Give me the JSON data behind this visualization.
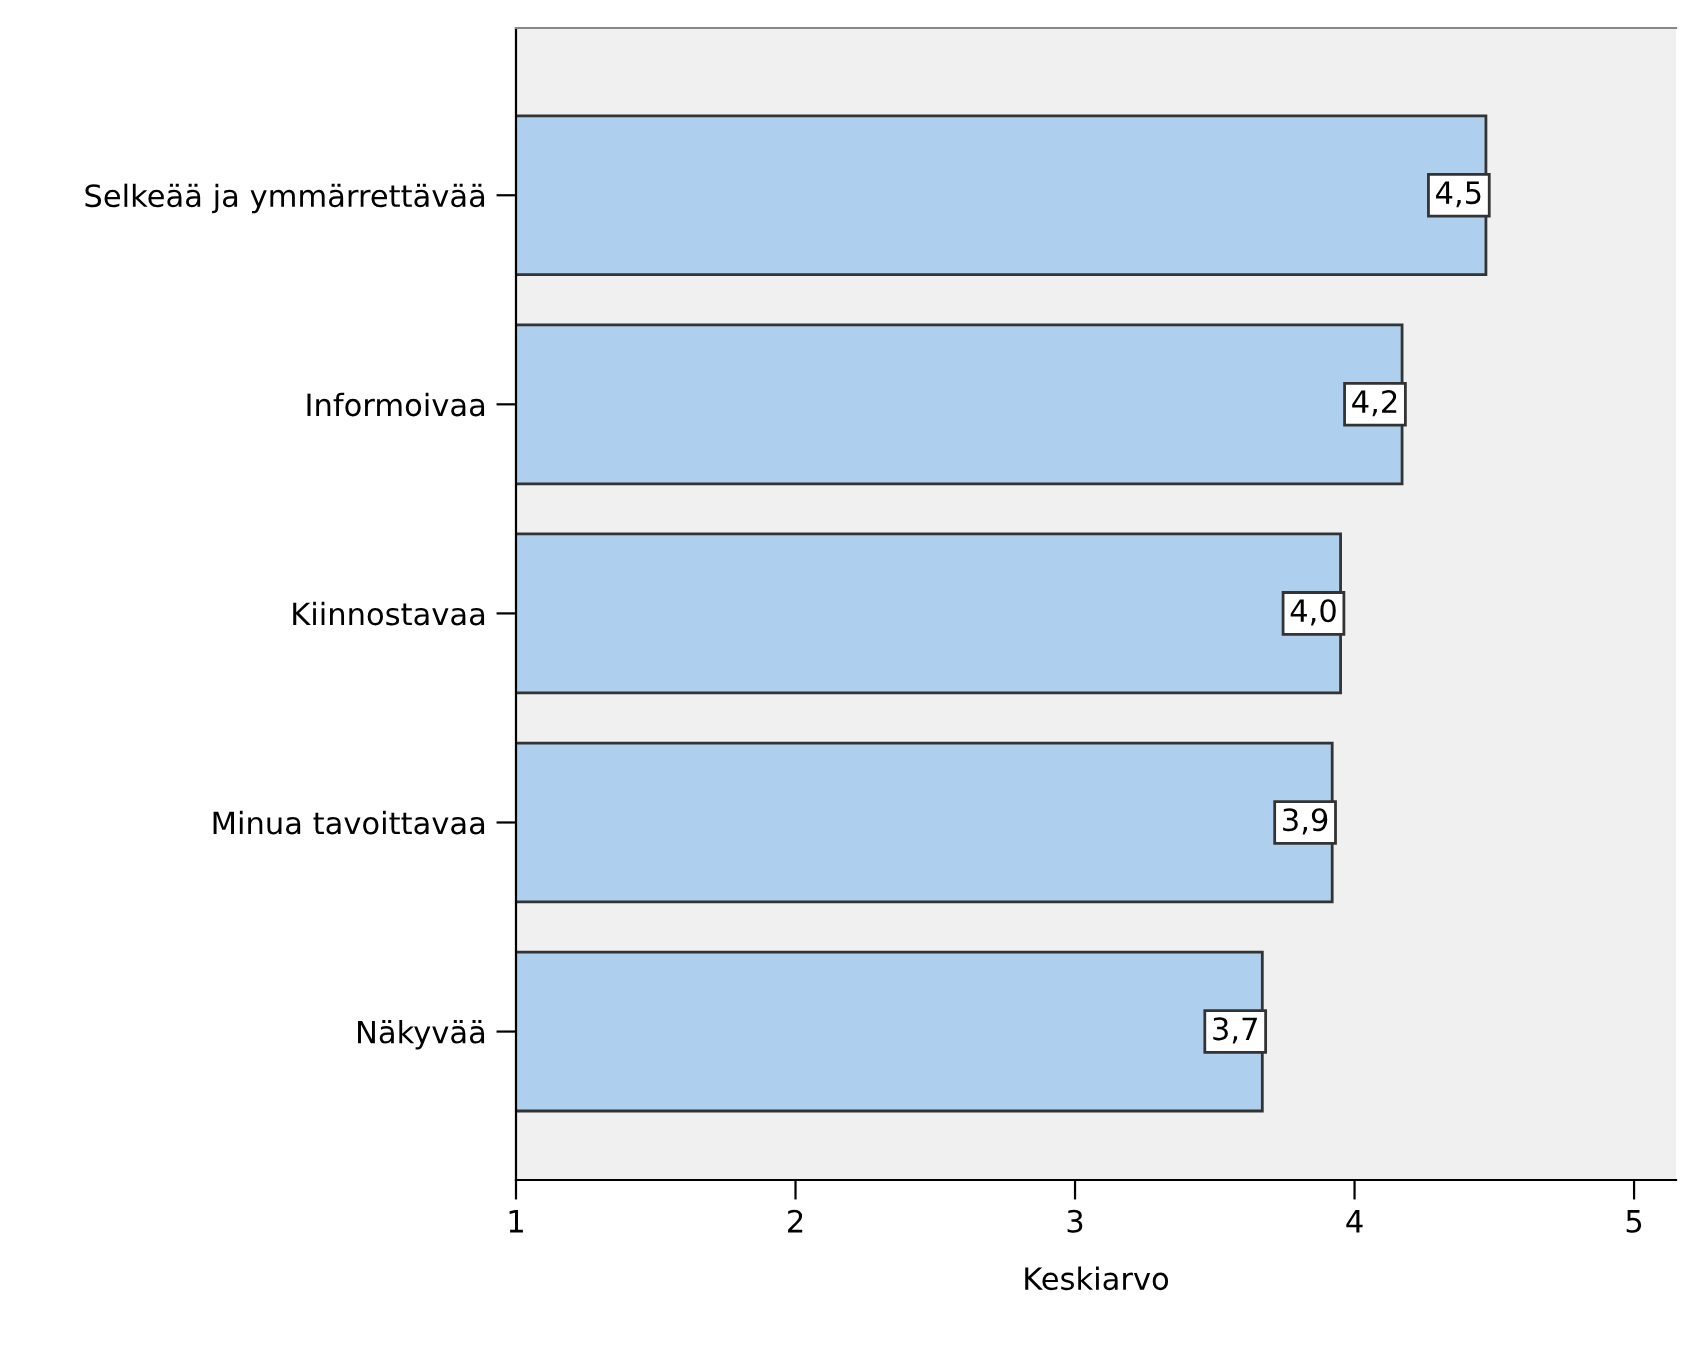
{
  "chart_data": {
    "type": "bar",
    "orientation": "horizontal",
    "xlabel": "Keskiarvo",
    "categories": [
      "Selkeää ja ymmärrettävää",
      "Informoivaa",
      "Kiinnostavaa",
      "Minua tavoittavaa",
      "Näkyvää"
    ],
    "values": [
      4.47,
      4.17,
      3.95,
      3.92,
      3.67
    ],
    "value_labels": [
      "4,5",
      "4,2",
      "4,0",
      "3,9",
      "3,7"
    ],
    "color": "#aecfee",
    "xlim": [
      1,
      5.15
    ],
    "xticks": [
      1,
      2,
      3,
      4,
      5
    ],
    "grid": false
  }
}
